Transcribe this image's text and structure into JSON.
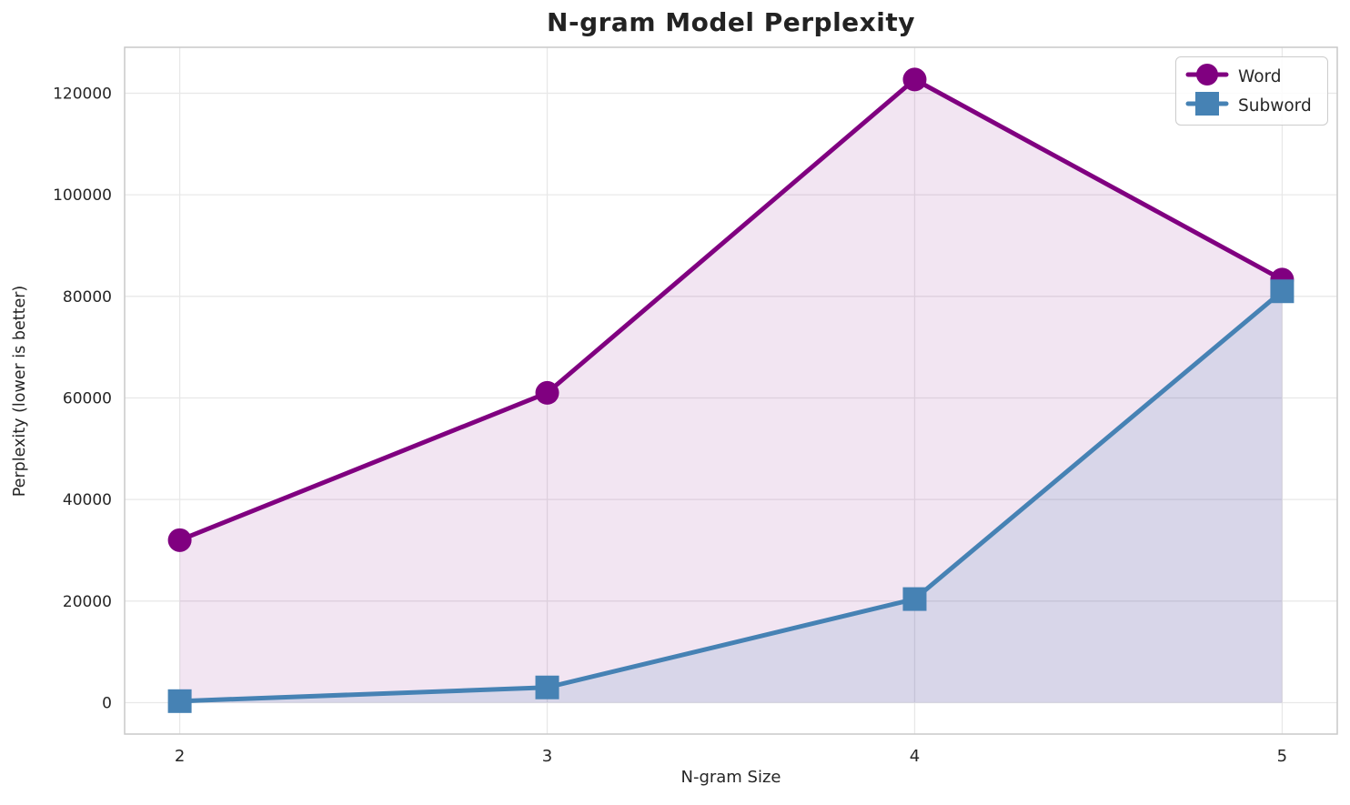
{
  "chart_data": {
    "type": "line",
    "title": "N-gram Model Perplexity",
    "xlabel": "N-gram Size",
    "ylabel": "Perplexity (lower is better)",
    "x": [
      2,
      3,
      4,
      5
    ],
    "series": [
      {
        "name": "Word",
        "values": [
          32000,
          61000,
          122700,
          83300
        ],
        "color": "#800080",
        "marker": "circle",
        "fill_opacity": 0.1
      },
      {
        "name": "Subword",
        "values": [
          300,
          3000,
          20400,
          81000
        ],
        "color": "#4682B4",
        "marker": "square",
        "fill_opacity": 0.15
      }
    ],
    "fill_to_zero": true,
    "line_width": 5,
    "marker_size": 26,
    "xticks": [
      2,
      3,
      4,
      5
    ],
    "yticks": [
      0,
      20000,
      40000,
      60000,
      80000,
      100000,
      120000
    ],
    "xlim": [
      1.85,
      5.15
    ],
    "ylim": [
      -6180,
      129040
    ],
    "grid": true,
    "legend_position": "upper right",
    "colors": {
      "grid": "#e8e8e8",
      "spine": "#c9c9c9",
      "text": "#262626",
      "background": "#ffffff"
    }
  }
}
